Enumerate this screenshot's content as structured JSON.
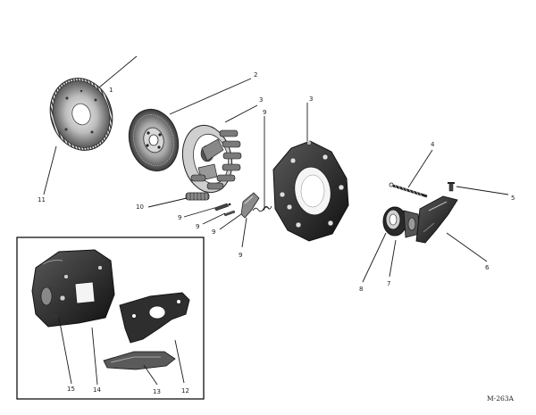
{
  "figure_id": "M-263A",
  "labels": {
    "l1": "1",
    "l2": "2",
    "l3a": "3",
    "l3b": "3",
    "l4": "4",
    "l5": "5",
    "l6": "6",
    "l7": "7",
    "l8": "8",
    "l9a": "9",
    "l9b": "9",
    "l9c": "9",
    "l9d": "9",
    "l9e": "9",
    "l10": "10",
    "l11": "11",
    "l12": "12",
    "l13": "13",
    "l14": "14",
    "l15": "15"
  }
}
